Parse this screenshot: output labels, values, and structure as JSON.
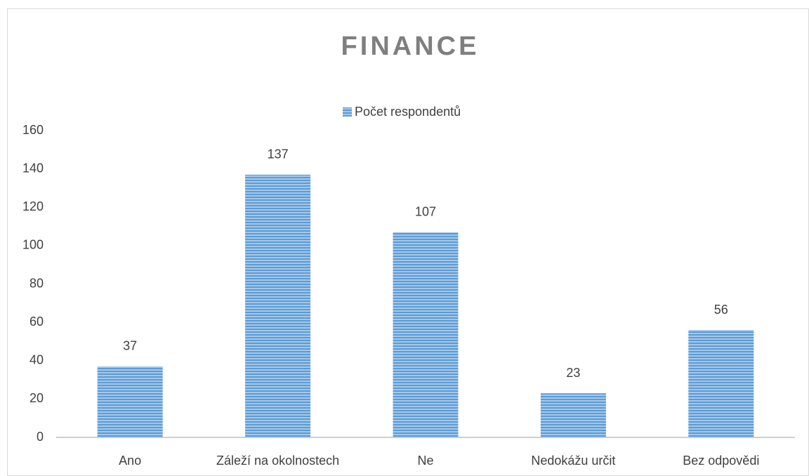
{
  "chart_data": {
    "type": "bar",
    "title": "FINANCE",
    "series": [
      {
        "name": "Počet respondentů",
        "color": "#5b9bd5",
        "values": [
          37,
          137,
          107,
          23,
          56
        ]
      }
    ],
    "categories": [
      "Ano",
      "Záleží na okolnostech",
      "Ne",
      "Nedokážu určit",
      "Bez odpovědi"
    ],
    "ylim": [
      0,
      160
    ],
    "yticks": [
      0,
      20,
      40,
      60,
      80,
      100,
      120,
      140,
      160
    ],
    "grid": false,
    "legend": "top"
  }
}
